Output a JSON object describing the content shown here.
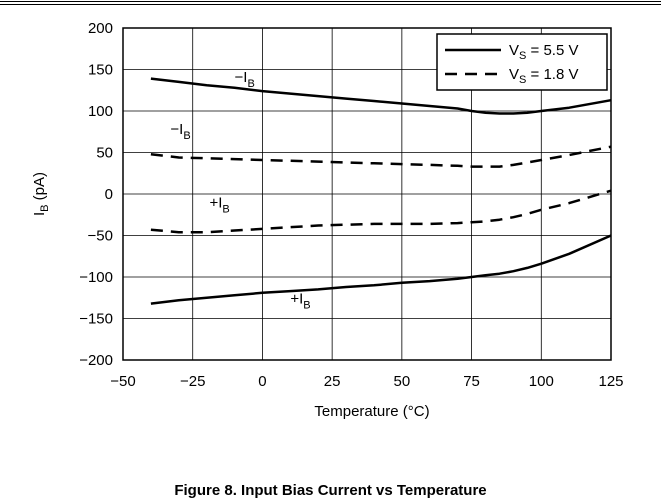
{
  "chart_data": {
    "type": "line",
    "xlabel": "Temperature (°C)",
    "ylabel": {
      "main": "I",
      "sub": "B",
      "rest": " (pA)"
    },
    "xlim": [
      -50,
      125
    ],
    "ylim": [
      -200,
      200
    ],
    "xticks": [
      "−50",
      "−25",
      "0",
      "25",
      "50",
      "75",
      "100",
      "125"
    ],
    "xtick_values": [
      -50,
      -25,
      0,
      25,
      50,
      75,
      100,
      125
    ],
    "yticks": [
      "200",
      "150",
      "100",
      "50",
      "0",
      "−50",
      "−100",
      "−150",
      "−200"
    ],
    "ytick_values": [
      200,
      150,
      100,
      50,
      0,
      -50,
      -100,
      -150,
      -200
    ],
    "grid": true,
    "legend_position": "top-right",
    "series": [
      {
        "name": "V_S = 5.5 V",
        "legend": {
          "main": "V",
          "sub": "S",
          "rest": " = 5.5 V"
        },
        "style": "solid",
        "label": "−I_B",
        "x": [
          -40,
          -30,
          -20,
          -10,
          0,
          10,
          20,
          30,
          40,
          50,
          60,
          70,
          75,
          80,
          85,
          90,
          95,
          100,
          110,
          125
        ],
        "y": [
          139,
          135,
          131,
          128,
          124,
          121,
          118,
          115,
          112,
          109,
          106,
          103,
          100,
          98,
          97,
          97,
          98,
          100,
          104,
          113
        ]
      },
      {
        "name": "V_S = 5.5 V",
        "style": "solid",
        "label": "+I_B",
        "x": [
          -40,
          -30,
          -20,
          -10,
          0,
          10,
          20,
          30,
          40,
          50,
          60,
          70,
          75,
          80,
          85,
          90,
          95,
          100,
          110,
          125
        ],
        "y": [
          -132,
          -128,
          -125,
          -122,
          -119,
          -117,
          -115,
          -112,
          -110,
          -107,
          -105,
          -102,
          -100,
          -98,
          -96,
          -93,
          -89,
          -84,
          -72,
          -50
        ]
      },
      {
        "name": "V_S = 1.8 V",
        "legend": {
          "main": "V",
          "sub": "S",
          "rest": " = 1.8 V"
        },
        "style": "dashed",
        "label": "−I_B",
        "x": [
          -40,
          -30,
          -20,
          -10,
          0,
          10,
          20,
          30,
          40,
          50,
          60,
          70,
          75,
          80,
          85,
          90,
          95,
          100,
          110,
          125
        ],
        "y": [
          48,
          44,
          43,
          42,
          41,
          40,
          39,
          38,
          37,
          36,
          35,
          34,
          33,
          33,
          33,
          35,
          38,
          41,
          47,
          57
        ]
      },
      {
        "name": "V_S = 1.8 V",
        "style": "dashed",
        "label": "+I_B",
        "x": [
          -40,
          -30,
          -20,
          -10,
          0,
          10,
          20,
          30,
          40,
          50,
          60,
          70,
          75,
          80,
          85,
          90,
          95,
          100,
          110,
          125
        ],
        "y": [
          -43,
          -46,
          -46,
          -44,
          -42,
          -40,
          -38,
          -37,
          -36,
          -36,
          -36,
          -35,
          -34,
          -33,
          -31,
          -28,
          -24,
          -19,
          -11,
          4
        ]
      }
    ],
    "annotations": [
      {
        "main": "−I",
        "sub": "B",
        "x": -10,
        "y": 135
      },
      {
        "main": "−I",
        "sub": "B",
        "x": -33,
        "y": 72
      },
      {
        "main": "+I",
        "sub": "B",
        "x": -19,
        "y": -16
      },
      {
        "main": "+I",
        "sub": "B",
        "x": 10,
        "y": -132
      }
    ]
  },
  "caption": "Figure 8. Input Bias Current vs Temperature",
  "colors": {
    "line": "#000000",
    "grid": "#000000",
    "background": "#ffffff"
  }
}
